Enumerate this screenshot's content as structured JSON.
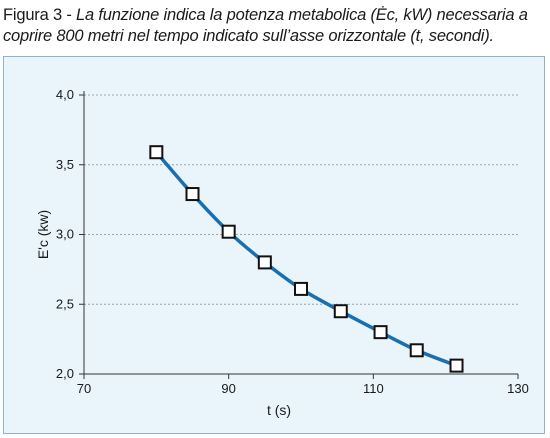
{
  "caption": {
    "lead": "Figura 3 - ",
    "text": "La funzione indica la potenza metabolica (Ėc, kW) necessaria a coprire 800 metri nel tempo indicato sull’asse orizzontale (t, secondi)."
  },
  "colors": {
    "panel_bg": "#eaf4fb",
    "panel_border": "#8fb3cf",
    "line": "#1a6fb3",
    "grid": "#9aa3ab"
  },
  "chart_data": {
    "type": "line",
    "title": "",
    "xlabel": "t (s)",
    "ylabel": "E'c (kw)",
    "xlim": [
      70,
      130
    ],
    "ylim": [
      2.0,
      4.0
    ],
    "xticks": [
      70,
      90,
      110,
      130
    ],
    "xtick_labels": [
      "70",
      "90",
      "110",
      "130"
    ],
    "yticks": [
      2.0,
      2.5,
      3.0,
      3.5,
      4.0
    ],
    "ytick_labels": [
      "2,0",
      "2,5",
      "3,0",
      "3,5",
      "4,0"
    ],
    "grid": "horizontal",
    "marker": "square",
    "series": [
      {
        "x": [
          80,
          85,
          90,
          95,
          100,
          105.5,
          111,
          116,
          121.5
        ],
        "y": [
          3.59,
          3.29,
          3.02,
          2.8,
          2.61,
          2.45,
          2.3,
          2.17,
          2.06
        ]
      }
    ]
  }
}
